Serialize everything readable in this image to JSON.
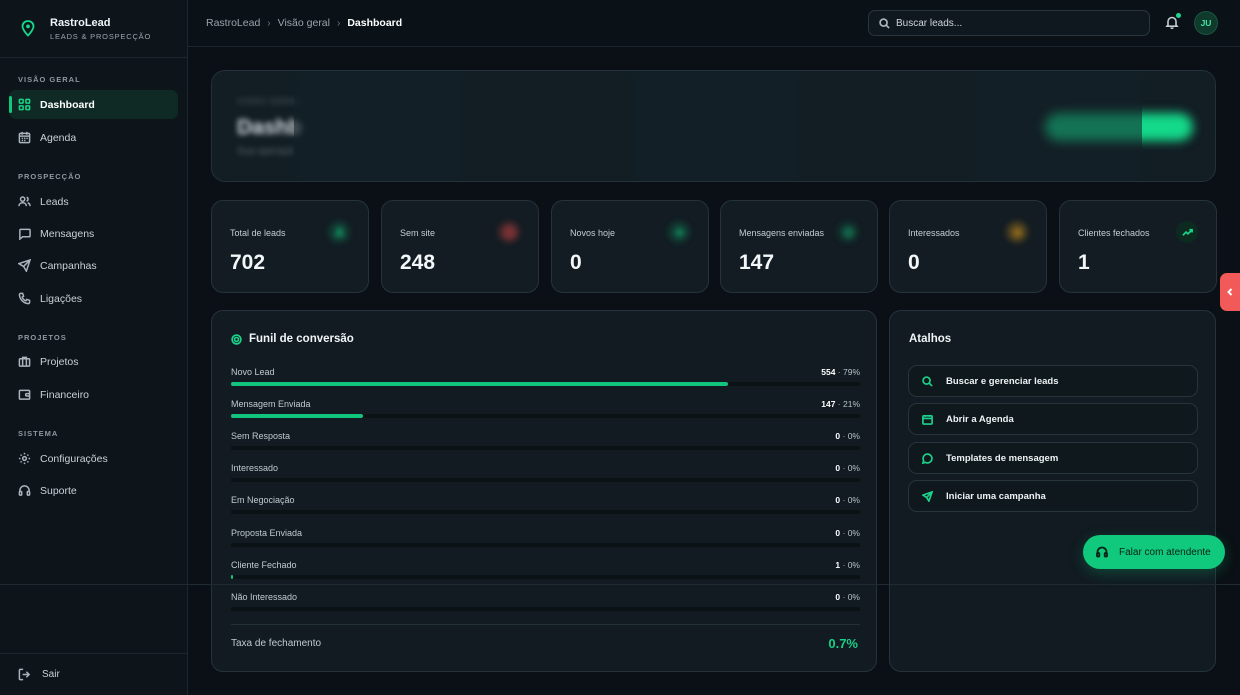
{
  "brand": {
    "name": "RastroLead",
    "tagline": "LEADS & PROSPECÇÃO"
  },
  "sidebar": {
    "sections": [
      {
        "title": "VISÃO GERAL"
      },
      {
        "title": "PROSPECÇÃO"
      },
      {
        "title": "PROJETOS"
      },
      {
        "title": "SISTEMA"
      }
    ],
    "items": [
      {
        "label": "Dashboard",
        "icon": "grid-icon",
        "active": true
      },
      {
        "label": "Agenda",
        "icon": "calendar-icon"
      },
      {
        "label": "Leads",
        "icon": "users-icon"
      },
      {
        "label": "Mensagens",
        "icon": "message-icon"
      },
      {
        "label": "Campanhas",
        "icon": "send-icon"
      },
      {
        "label": "Ligações",
        "icon": "phone-icon"
      },
      {
        "label": "Projetos",
        "icon": "briefcase-icon"
      },
      {
        "label": "Financeiro",
        "icon": "wallet-icon"
      },
      {
        "label": "Configurações",
        "icon": "gear-icon"
      },
      {
        "label": "Suporte",
        "icon": "headset-icon"
      }
    ],
    "logout_label": "Sair"
  },
  "header": {
    "breadcrumb": [
      "RastroLead",
      "Visão geral",
      "Dashboard"
    ],
    "search_placeholder": "Buscar leads...",
    "avatar_initials": "JU"
  },
  "hero": {
    "kicker": "VISÃO GERAL",
    "title": "Dashb",
    "subtitle": "Sua operaçã"
  },
  "stats": [
    {
      "label": "Total de leads",
      "value": "702",
      "color": "#12c47c"
    },
    {
      "label": "Sem site",
      "value": "248",
      "color": "#e04646"
    },
    {
      "label": "Novos hoje",
      "value": "0",
      "color": "#12c47c"
    },
    {
      "label": "Mensagens enviadas",
      "value": "147",
      "color": "#12c47c"
    },
    {
      "label": "Interessados",
      "value": "0",
      "color": "#e6a11a"
    },
    {
      "label": "Clientes fechados",
      "value": "1",
      "color": "#12c47c"
    }
  ],
  "funnel": {
    "title": "Funil de conversão",
    "rows": [
      {
        "label": "Novo Lead",
        "count": "554",
        "pct": "79%",
        "fill": 0.79
      },
      {
        "label": "Mensagem Enviada",
        "count": "147",
        "pct": "21%",
        "fill": 0.21
      },
      {
        "label": "Sem Resposta",
        "count": "0",
        "pct": "0%",
        "fill": 0
      },
      {
        "label": "Interessado",
        "count": "0",
        "pct": "0%",
        "fill": 0
      },
      {
        "label": "Em Negociação",
        "count": "0",
        "pct": "0%",
        "fill": 0
      },
      {
        "label": "Proposta Enviada",
        "count": "0",
        "pct": "0%",
        "fill": 0
      },
      {
        "label": "Cliente Fechado",
        "count": "1",
        "pct": "0%",
        "fill": 0.002
      },
      {
        "label": "Não Interessado",
        "count": "0",
        "pct": "0%",
        "fill": 0
      }
    ],
    "closing_rate_label": "Taxa de fechamento",
    "closing_rate_value": "0.7%"
  },
  "shortcuts": {
    "title": "Atalhos",
    "items": [
      {
        "label": "Buscar e gerenciar leads",
        "icon": "search-icon"
      },
      {
        "label": "Abrir a Agenda",
        "icon": "calendar-icon"
      },
      {
        "label": "Templates de mensagem",
        "icon": "message-icon"
      },
      {
        "label": "Iniciar uma campanha",
        "icon": "send-icon"
      }
    ]
  },
  "support_button": "Falar com atendente",
  "colors": {
    "accent": "#10c97c",
    "background": "#0a1015",
    "card": "#121c22",
    "side_tab": "#f25a5a"
  }
}
